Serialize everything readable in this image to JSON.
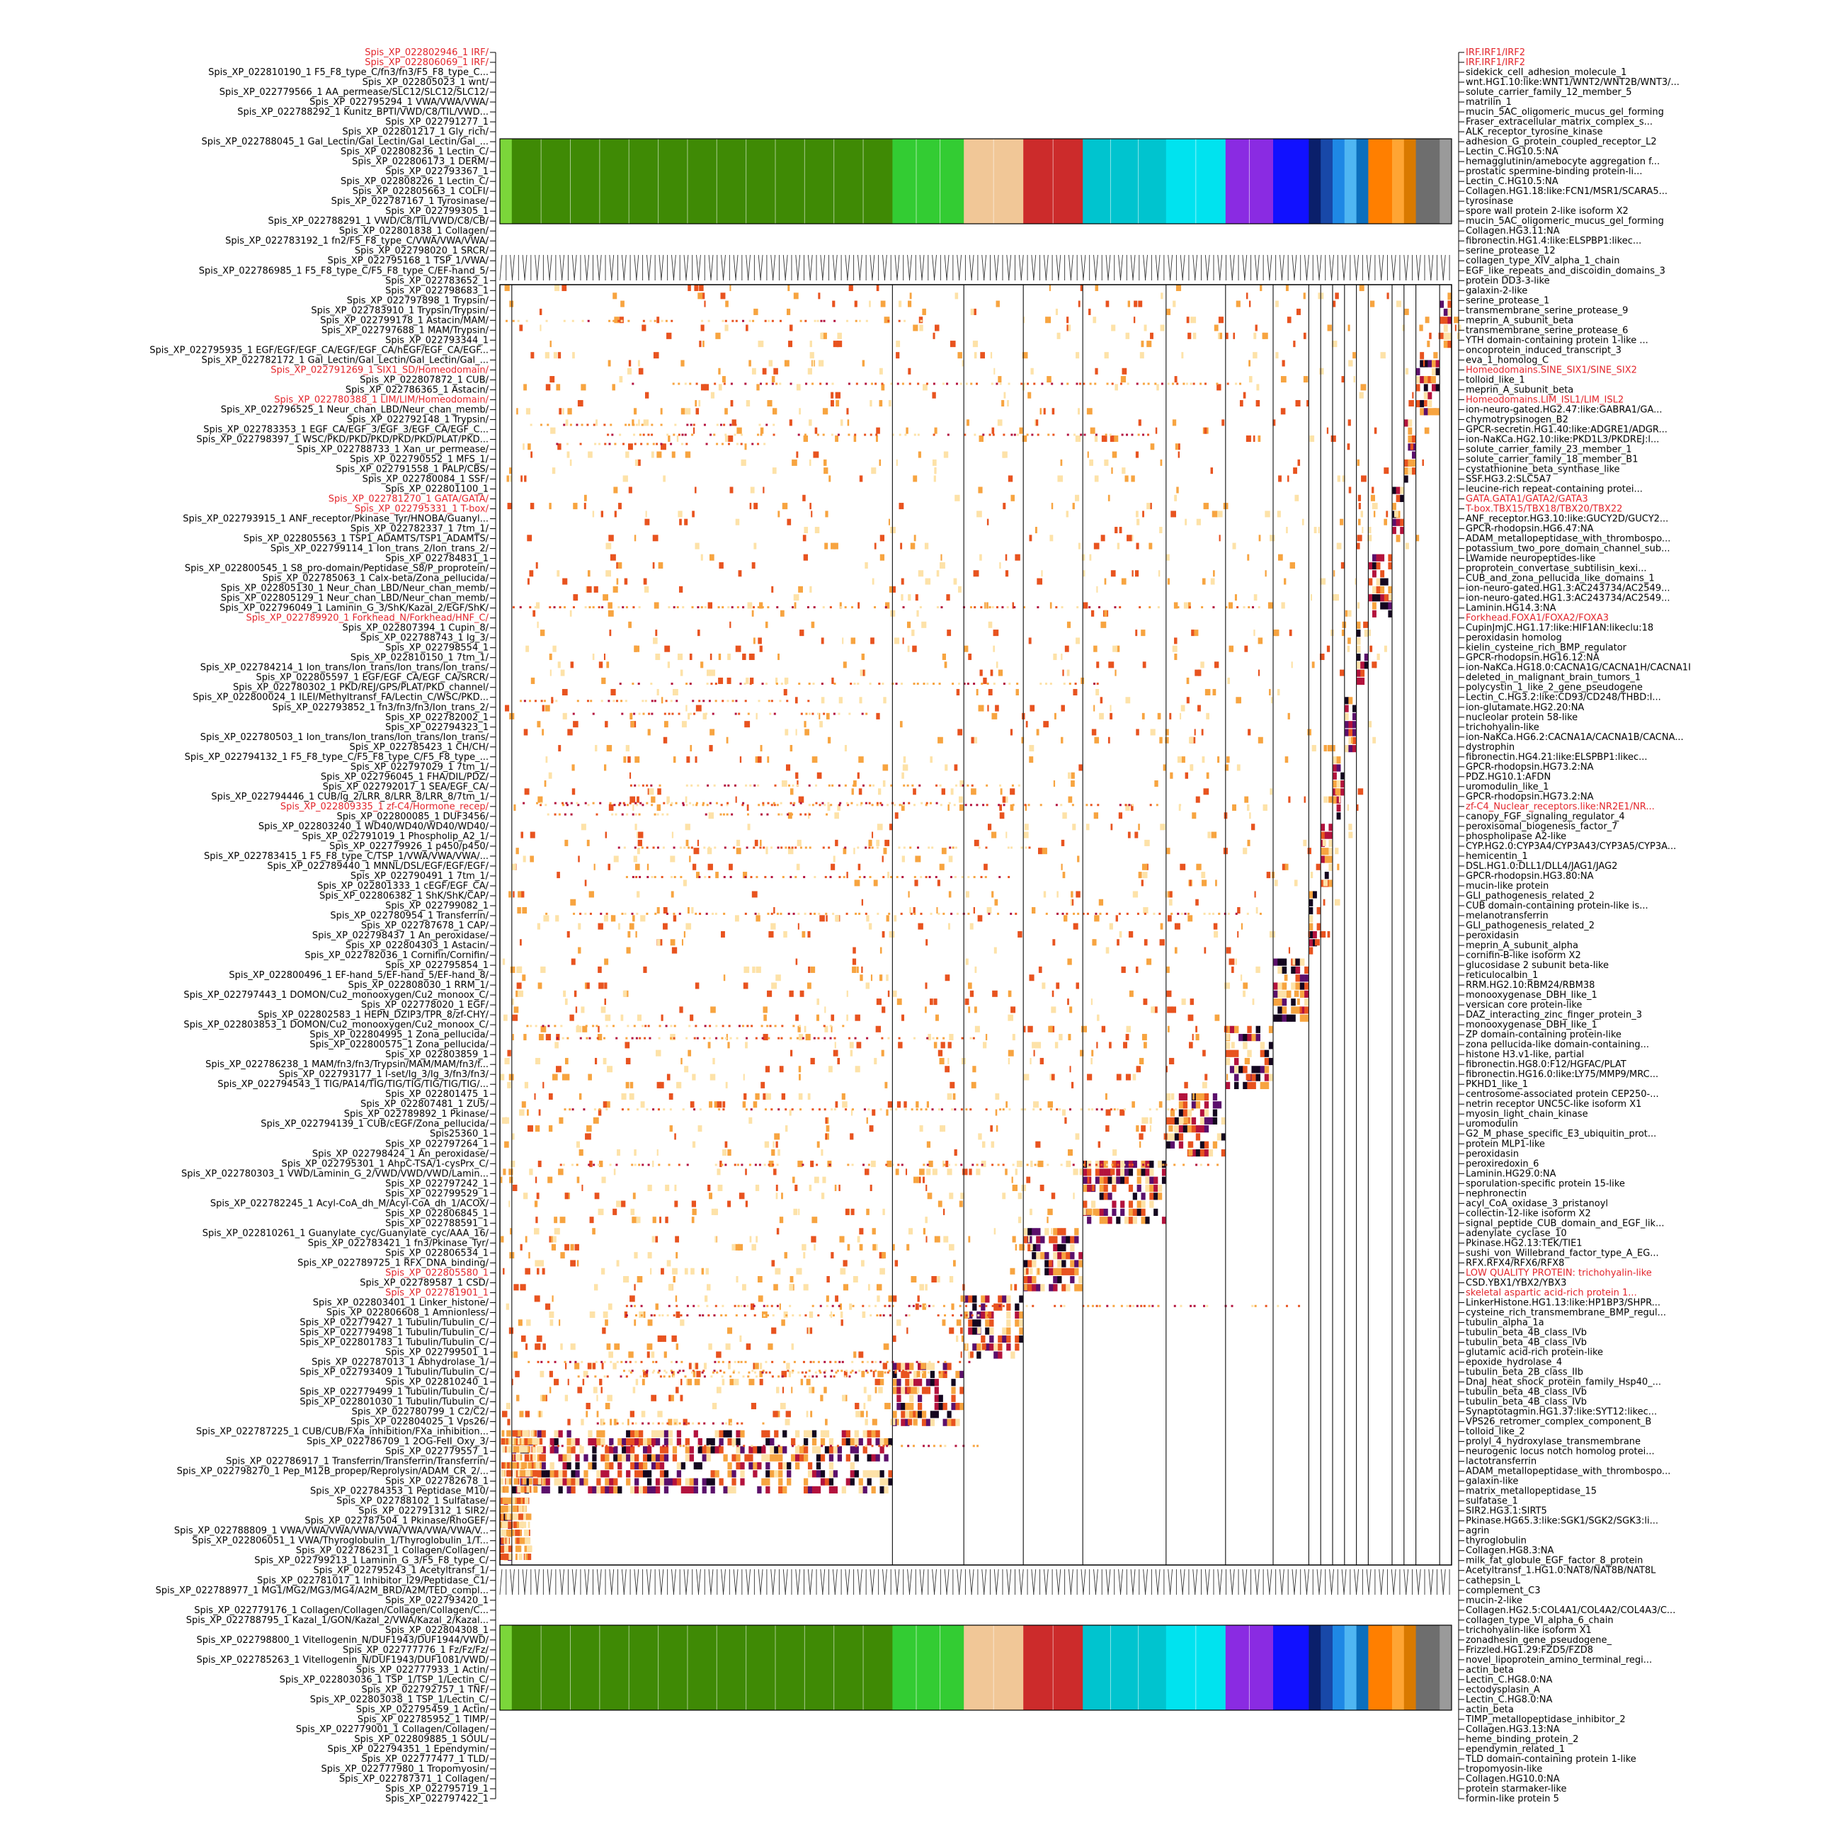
{
  "chart_data": {
    "type": "heatmap",
    "title": "",
    "xlabel": "",
    "ylabel": "",
    "colormap": [
      "#ffffff",
      "#fde2a8",
      "#f7a440",
      "#e8531f",
      "#b3123d",
      "#5b0f6b",
      "#14061f"
    ],
    "cluster_band_colors": [
      {
        "color": "#7bd63a",
        "weight": 1
      },
      {
        "color": "#3f8a05",
        "weight": 32
      },
      {
        "color": "#33cc33",
        "weight": 6
      },
      {
        "color": "#f1c797",
        "weight": 5
      },
      {
        "color": "#cc2b2b",
        "weight": 5
      },
      {
        "color": "#00c4cf",
        "weight": 7
      },
      {
        "color": "#00e3ef",
        "weight": 5
      },
      {
        "color": "#8a2be2",
        "weight": 4
      },
      {
        "color": "#1111ff",
        "weight": 3
      },
      {
        "color": "#0a1f6b",
        "weight": 1
      },
      {
        "color": "#1848a8",
        "weight": 1
      },
      {
        "color": "#1e88e5",
        "weight": 1
      },
      {
        "color": "#4fb6f2",
        "weight": 1
      },
      {
        "color": "#0c6fbd",
        "weight": 1
      },
      {
        "color": "#ff7f00",
        "weight": 2
      },
      {
        "color": "#ffa533",
        "weight": 1
      },
      {
        "color": "#d97a00",
        "weight": 1
      },
      {
        "color": "#6e6e6e",
        "weight": 2
      },
      {
        "color": "#9a9a9a",
        "weight": 1
      }
    ],
    "left_labels": [
      "Spis_XP_022802946_1 IRF/",
      "Spis_XP_022806069_1 IRF/",
      "Spis_XP_022810190_1 F5_F8_type_C/fn3/fn3/F5_F8_type_C...",
      "Spis_XP_022805023_1 wnt/",
      "Spis_XP_022779566_1 AA_permease/SLC12/SLC12/SLC12/",
      "Spis_XP_022795294_1 VWA/VWA/VWA/",
      "Spis_XP_022788292_1 Kunitz_BPTI/VWD/C8/TIL/VWD...",
      "Spis_XP_022791277_1",
      "Spis_XP_022801217_1 Gly_rich/",
      "Spis_XP_022788045_1 Gal_Lectin/Gal_Lectin/Gal_Lectin/Gal_...",
      "Spis_XP_022808236_1 Lectin_C/",
      "Spis_XP_022806173_1 DERM/",
      "Spis_XP_022793367_1",
      "Spis_XP_022808226_1 Lectin_C/",
      "Spis_XP_022805663_1 COLFI/",
      "Spis_XP_022787167_1 Tyrosinase/",
      "Spis_XP_022799305_1",
      "Spis_XP_022788291_1 VWD/C8/TIL/VWD/C8/CB/",
      "Spis_XP_022801838_1 Collagen/",
      "Spis_XP_022783192_1 fn2/F5_F8_type_C/VWA/VWA/VWA/",
      "Spis_XP_022798020_1 SRCR/",
      "Spis_XP_022795168_1 TSP_1/VWA/",
      "Spis_XP_022786985_1 F5_F8_type_C/F5_F8_type_C/EF-hand_5/",
      "Spis_XP_022783652_1",
      "Spis_XP_022798683_1",
      "Spis_XP_022797898_1 Trypsin/",
      "Spis_XP_022783910_1 Trypsin/Trypsin/",
      "Spis_XP_022799178_1 Astacin/MAM/",
      "Spis_XP_022797688_1 MAM/Trypsin/",
      "Spis_XP_022793344_1",
      "Spis_XP_022795935_1 EGF/EGF/EGF_CA/EGF/EGF_CA/hEGF/EGF_CA/EGF...",
      "Spis_XP_022782172_1 Gal_Lectin/Gal_Lectin/Gal_Lectin/Gal_...",
      "Spis_XP_022791269_1 SIX1_SD/Homeodomain/",
      "Spis_XP_022807872_1 CUB/",
      "Spis_XP_022786365_1 Astacin/",
      "Spis_XP_022780388_1 LIM/LIM/Homeodomain/",
      "Spis_XP_022796525_1 Neur_chan_LBD/Neur_chan_memb/",
      "Spis_XP_022792148_1 Trypsin/",
      "Spis_XP_022783353_1 EGF_CA/EGF_3/EGF_3/EGF_CA/EGF_C...",
      "Spis_XP_022798397_1 WSC/PKD/PKD/PKD/PKD/PKD/PLAT/PKD...",
      "Spis_XP_022788733_1 Xan_ur_permease/",
      "Spis_XP_022790552_1 MFS_1/",
      "Spis_XP_022791558_1 PALP/CBS/",
      "Spis_XP_022780084_1 SSF/",
      "Spis_XP_022801100_1",
      "Spis_XP_022781270_1 GATA/GATA/",
      "Spis_XP_022795331_1 T-box/",
      "Spis_XP_022793915_1 ANF_receptor/Pkinase_Tyr/HNOBA/Guanyl...",
      "Spis_XP_022782337_1 7tm_1/",
      "Spis_XP_022805563_1 TSP1_ADAMTS/TSP1_ADAMTS/",
      "Spis_XP_022799114_1 Ion_trans_2/Ion_trans_2/",
      "Spis_XP_022784831_1",
      "Spis_XP_022800545_1 S8_pro-domain/Peptidase_S8/P_proprotein/",
      "Spis_XP_022785063_1 Calx-beta/Zona_pellucida/",
      "Spis_XP_022805130_1 Neur_chan_LBD/Neur_chan_memb/",
      "Spis_XP_022805129_1 Neur_chan_LBD/Neur_chan_memb/",
      "Spis_XP_022796049_1 Laminin_G_3/ShK/Kazal_2/EGF/ShK/",
      "Spis_XP_022789920_1 Forkhead_N/Forkhead/HNF_C/",
      "Spis_XP_022807394_1 Cupin_8/",
      "Spis_XP_022788743_1 Ig_3/",
      "Spis_XP_022798554_1",
      "Spis_XP_022810150_1 7tm_1/",
      "Spis_XP_022784214_1 Ion_trans/Ion_trans/Ion_trans/Ion_trans/",
      "Spis_XP_022805597_1 EGF/EGF_CA/EGF_CA/SRCR/",
      "Spis_XP_022780302_1 PKD/REJ/GPS/PLAT/PKD_channel/",
      "Spis_XP_022800024_1 ILEI/Methyltransf_FA/Lectin_C/WSC/PKD...",
      "Spis_XP_022793852_1 fn3/fn3/fn3/Ion_trans_2/",
      "Spis_XP_022782002_1",
      "Spis_XP_022794323_1",
      "Spis_XP_022780503_1 Ion_trans/Ion_trans/Ion_trans/Ion_trans/",
      "Spis_XP_022785423_1 CH/CH/",
      "Spis_XP_022794132_1 F5_F8_type_C/F5_F8_type_C/F5_F8_type_...",
      "Spis_XP_022797029_1 7tm_1/",
      "Spis_XP_022796045_1 FHA/DIL/PDZ/",
      "Spis_XP_022792017_1 SEA/EGF_CA/",
      "Spis_XP_022794446_1 CUB/Ig_2/LRR_8/LRR_8/LRR_8/7tm_1/",
      "Spis_XP_022809335_1 zf-C4/Hormone_recep/",
      "Spis_XP_022800085_1 DUF3456/",
      "Spis_XP_022803240_1 WD40/WD40/WD40/WD40/",
      "Spis_XP_022791019_1 Phospholip_A2_1/",
      "Spis_XP_022779926_1 p450/p450/",
      "Spis_XP_022783415_1 F5_F8_type_C/TSP_1/VWA/VWA/VWA/...",
      "Spis_XP_022789440_1 MNNL/DSL/EGF/EGF/EGF/",
      "Spis_XP_022790491_1 7tm_1/",
      "Spis_XP_022801333_1 cEGF/EGF_CA/",
      "Spis_XP_022806382_1 ShK/ShK/CAP/",
      "Spis_XP_022799082_1",
      "Spis_XP_022780954_1 Transferrin/",
      "Spis_XP_022787678_1 CAP/",
      "Spis_XP_022798437_1 An_peroxidase/",
      "Spis_XP_022804303_1 Astacin/",
      "Spis_XP_022782036_1 Cornifin/Cornifin/",
      "Spis_XP_022795854_1",
      "Spis_XP_022800496_1 EF-hand_5/EF-hand_5/EF-hand_8/",
      "Spis_XP_022808030_1 RRM_1/",
      "Spis_XP_022797443_1 DOMON/Cu2_monooxygen/Cu2_monoox_C/",
      "Spis_XP_022778020_1 EGF/",
      "Spis_XP_022802583_1 HEPN_DZIP3/TPR_8/zf-CHY/",
      "Spis_XP_022803853_1 DOMON/Cu2_monooxygen/Cu2_monoox_C/",
      "Spis_XP_022804995_1 Zona_pellucida/",
      "Spis_XP_022800575_1 Zona_pellucida/",
      "Spis_XP_022803859_1",
      "Spis_XP_022786238_1 MAM/fn3/fn3/Trypsin/MAM/MAM/fn3/f...",
      "Spis_XP_022793177_1 I-set/Ig_3/Ig_3/fn3/fn3/",
      "Spis_XP_022794543_1 TIG/PA14/TIG/TIG/TIG/TIG/TIG/TIG/...",
      "Spis_XP_022801475_1",
      "Spis_XP_022807481_1 ZU5/",
      "Spis_XP_022789892_1 Pkinase/",
      "Spis_XP_022794139_1 CUB/cEGF/Zona_pellucida/",
      "Spis25360_1",
      "Spis_XP_022797264_1",
      "Spis_XP_022798424_1 An_peroxidase/",
      "Spis_XP_022795301_1 AhpC-TSA/1-cysPrx_C/",
      "Spis_XP_022780303_1 VWD/Laminin_G_2/VWD/VWD/VWD/Lamin...",
      "Spis_XP_022797242_1",
      "Spis_XP_022799529_1",
      "Spis_XP_022782245_1 Acyl-CoA_dh_M/Acyl-CoA_dh_1/ACOX/",
      "Spis_XP_022806845_1",
      "Spis_XP_022788591_1",
      "Spis_XP_022810261_1 Guanylate_cyc/Guanylate_cyc/AAA_16/",
      "Spis_XP_022783421_1 fn3/Pkinase_Tyr/",
      "Spis_XP_022806534_1",
      "Spis_XP_022789725_1 RFX_DNA_binding/",
      "Spis_XP_022805580_1",
      "Spis_XP_022789587_1 CSD/",
      "Spis_XP_022781901_1",
      "Spis_XP_022803401_1 Linker_histone/",
      "Spis_XP_022806608_1 Amnionless/",
      "Spis_XP_022779427_1 Tubulin/Tubulin_C/",
      "Spis_XP_022779498_1 Tubulin/Tubulin_C/",
      "Spis_XP_022801783_1 Tubulin/Tubulin_C/",
      "Spis_XP_022799501_1",
      "Spis_XP_022787013_1 Abhydrolase_1/",
      "Spis_XP_022793409_1 Tubulin/Tubulin_C/",
      "Spis_XP_022810240_1",
      "Spis_XP_022779499_1 Tubulin/Tubulin_C/",
      "Spis_XP_022801030_1 Tubulin/Tubulin_C/",
      "Spis_XP_022780799_1 C2/C2/",
      "Spis_XP_022804025_1 Vps26/",
      "Spis_XP_022787225_1 CUB/CUB/FXa_inhibition/FXa_inhibition...",
      "Spis_XP_022786709_1 2OG-FeII_Oxy_3/",
      "Spis_XP_022779557_1",
      "Spis_XP_022786917_1 Transferrin/Transferrin/Transferrin/",
      "Spis_XP_022798270_1 Pep_M12B_propep/Reprolysin/ADAM_CR_2/...",
      "Spis_XP_022782678_1",
      "Spis_XP_022784353_1 Peptidase_M10/",
      "Spis_XP_022788102_1 Sulfatase/",
      "Spis_XP_022791312_1 SIR2/",
      "Spis_XP_022787504_1 Pkinase/RhoGEF/",
      "Spis_XP_022788809_1 VWA/VWA/VWA/VWA/VWA/VWA/VWA/VWA/V...",
      "Spis_XP_022806051_1 VWA/Thyroglobulin_1/Thyroglobulin_1/T...",
      "Spis_XP_022786231_1 Collagen/Collagen/",
      "Spis_XP_022799213_1 Laminin_G_3/F5_F8_type_C/",
      "Spis_XP_022795243_1 Acetyltransf_1/",
      "Spis_XP_022781017_1 Inhibitor_I29/Peptidase_C1/",
      "Spis_XP_022788977_1 MG1/MG2/MG3/MG4/A2M_BRD/A2M/TED_compl...",
      "Spis_XP_022793420_1",
      "Spis_XP_022779176_1 Collagen/Collagen/Collagen/Collagen/C...",
      "Spis_XP_022788795_1 Kazal_1/GON/Kazal_2/VWA/Kazal_2/Kazal...",
      "Spis_XP_022804308_1",
      "Spis_XP_022798800_1 Vitellogenin_N/DUF1943/DUF1944/VWD/",
      "Spis_XP_022777776_1 Fz/Fz/Fz/",
      "Spis_XP_022785263_1 Vitellogenin_N/DUF1943/DUF1081/VWD/",
      "Spis_XP_022777933_1 Actin/",
      "Spis_XP_022803036_1 TSP_1/TSP_1/Lectin_C/",
      "Spis_XP_022792757_1 TNF/",
      "Spis_XP_022803038_1 TSP_1/Lectin_C/",
      "Spis_XP_022795459_1 Actin/",
      "Spis_XP_022785952_1 TIMP/",
      "Spis_XP_022779001_1 Collagen/Collagen/",
      "Spis_XP_022809885_1 SOUL/",
      "Spis_XP_022794351_1 Ependymin/",
      "Spis_XP_022777477_1 TLD/",
      "Spis_XP_022777980_1 Tropomyosin/",
      "Spis_XP_022787371_1 Collagen/",
      "Spis_XP_022795719_1",
      "Spis_XP_022797422_1"
    ],
    "right_labels": [
      "IRF.IRF1/IRF2",
      "IRF.IRF1/IRF2",
      "sidekick_cell_adhesion_molecule_1",
      "wnt.HG1.10:like:WNT1/WNT2/WNT2B/WNT3/...",
      "solute_carrier_family_12_member_5",
      "matrilin_1",
      "mucin_5AC_oligomeric_mucus_gel_forming",
      "Fraser_extracellular_matrix_complex_s...",
      "ALK_receptor_tyrosine_kinase",
      "adhesion_G_protein_coupled_receptor_L2",
      "Lectin_C.HG10.5:NA",
      "hemagglutinin/amebocyte aggregation f...",
      "prostatic spermine-binding protein-li...",
      "Lectin_C.HG10.5:NA",
      "Collagen.HG1.18:like:FCN1/MSR1/SCARA5...",
      "tyrosinase",
      "spore wall protein 2-like isoform X2",
      "mucin_5AC_oligomeric_mucus_gel_forming",
      "Collagen.HG3.11:NA",
      "fibronectin.HG1.4:like:ELSPBP1:likec...",
      "serine_protease_12",
      "collagen_type_XIV_alpha_1_chain",
      "EGF_like_repeats_and_discoidin_domains_3",
      "protein DD3-3-like",
      "galaxin-2-like",
      "serine_protease_1",
      "transmembrane_serine_protease_9",
      "meprin_A_subunit_beta",
      "transmembrane_serine_protease_6",
      "YTH domain-containing protein 1-like ...",
      "oncoprotein_induced_transcript_3",
      "eva_1_homolog_C",
      "Homeodomains.SINE_SIX1/SINE_SIX2",
      "tolloid_like_1",
      "meprin_A_subunit_beta",
      "Homeodomains.LIM_ISL1/LIM_ISL2",
      "ion-neuro-gated.HG2.47:like:GABRA1/GA...",
      "chymotrypsinogen_B2",
      "GPCR-secretin.HG1.40:like:ADGRE1/ADGR...",
      "ion-NaKCa.HG2.10:like:PKD1L3/PKDREJ:l...",
      "solute_carrier_family_23_member_1",
      "solute_carrier_family_18_member_B1",
      "cystathionine_beta_synthase_like",
      "SSF.HG3.2:SLC5A7",
      "leucine-rich repeat-containing protei...",
      "GATA.GATA1/GATA2/GATA3",
      "T-box.TBX15/TBX18/TBX20/TBX22",
      "ANF_receptor.HG3.10:like:GUCY2D/GUCY2...",
      "GPCR-rhodopsin.HG6.47:NA",
      "ADAM_metallopeptidase_with_thrombospo...",
      "potassium_two_pore_domain_channel_sub...",
      "LWamide neuropeptides-like",
      "proprotein_convertase_subtilisin_kexi...",
      "CUB_and_zona_pellucida_like_domains_1",
      "ion-neuro-gated.HG1.3:AC243734/AC2549...",
      "ion-neuro-gated.HG1.3:AC243734/AC2549...",
      "Laminin.HG14.3:NA",
      "Forkhead.FOXA1/FOXA2/FOXA3",
      "CupinJmjC.HG1.17:like:HIF1AN:likeclu:18",
      "peroxidasin homolog",
      "kielin_cysteine_rich_BMP_regulator",
      "GPCR-rhodopsin.HG16.12:NA",
      "ion-NaKCa.HG18.0:CACNA1G/CACNA1H/CACNA1I",
      "deleted_in_malignant_brain_tumors_1",
      "polycystin_1_like_2_gene_pseudogene",
      "Lectin_C.HG3.2:like:CD93/CD248/THBD:l...",
      "ion-glutamate.HG2.20:NA",
      "nucleolar protein 58-like",
      "trichohyalin-like",
      "ion-NaKCa.HG6.2:CACNA1A/CACNA1B/CACNA...",
      "dystrophin",
      "fibronectin.HG4.21:like:ELSPBP1:likec...",
      "GPCR-rhodopsin.HG73.2:NA",
      "PDZ.HG10.1:AFDN",
      "uromodulin_like_1",
      "GPCR-rhodopsin.HG73.2:NA",
      "zf-C4_Nuclear_receptors.like:NR2E1/NR...",
      "canopy_FGF_signaling_regulator_4",
      "peroxisomal_biogenesis_factor_7",
      "phospholipase A2-like",
      "CYP.HG2.0:CYP3A4/CYP3A43/CYP3A5/CYP3A...",
      "hemicentin_1",
      "DSL.HG1.0:DLL1/DLL4/JAG1/JAG2",
      "GPCR-rhodopsin.HG3.80:NA",
      "mucin-like protein",
      "GLI_pathogenesis_related_2",
      "CUB domain-containing protein-like is...",
      "melanotransferrin",
      "GLI_pathogenesis_related_2",
      "peroxidasin",
      "meprin_A_subunit_alpha",
      "cornifin-B-like isoform X2",
      "glucosidase 2 subunit beta-like",
      "reticulocalbin_1",
      "RRM.HG2.10:RBM24/RBM38",
      "monooxygenase_DBH_like_1",
      "versican core protein-like",
      "DAZ_interacting_zinc_finger_protein_3",
      "monooxygenase_DBH_like_1",
      "ZP domain-containing protein-like",
      "zona pellucida-like domain-containing...",
      "histone H3.v1-like, partial",
      "fibronectin.HG8.0:F12/HGFAC/PLAT",
      "fibronectin.HG16.0:like:LY75/MMP9/MRC...",
      "PKHD1_like_1",
      "centrosome-associated protein CEP250-...",
      "netrin receptor UNC5C-like isoform X1",
      "myosin_light_chain_kinase",
      "uromodulin",
      "G2_M_phase_specific_E3_ubiquitin_prot...",
      "protein MLP1-like",
      "peroxidasin",
      "peroxiredoxin_6",
      "Laminin.HG29.0:NA",
      "sporulation-specific protein 15-like",
      "nephronectin",
      "acyl_CoA_oxidase_3_pristanoyl",
      "collectin-12-like isoform X2",
      "signal_peptide_CUB_domain_and_EGF_lik...",
      "adenylate_cyclase_10",
      "Pkinase.HG2.13:TEK/TIE1",
      "sushi_von_Willebrand_factor_type_A_EG...",
      "RFX.RFX4/RFX6/RFX8",
      "LOW QUALITY PROTEIN: trichohyalin-like",
      "CSD.YBX1/YBX2/YBX3",
      "skeletal aspartic acid-rich protein 1...",
      "LinkerHistone.HG1.13:like:HP1BP3/SHPR...",
      "cysteine_rich_transmembrane_BMP_regul...",
      "tubulin_alpha_1a",
      "tubulin_beta_4B_class_IVb",
      "tubulin_beta_4B_class_IVb",
      "glutamic acid-rich protein-like",
      "epoxide_hydrolase_4",
      "tubulin_beta_2B_class_IIb",
      "DnaJ_heat_shock_protein_family_Hsp40_...",
      "tubulin_beta_4B_class_IVb",
      "tubulin_beta_4B_class_IVb",
      "Synaptotagmin.HG1.37:like:SYT12:likec...",
      "VPS26_retromer_complex_component_B",
      "tolloid_like_2",
      "prolyl_4_hydroxylase_transmembrane",
      "neurogenic locus notch homolog protei...",
      "lactotransferrin",
      "ADAM_metallopeptidase_with_thrombospo...",
      "galaxin-like",
      "matrix_metallopeptidase_15",
      "sulfatase_1",
      "SIR2.HG3.1:SIRT5",
      "Pkinase.HG65.3:like:SGK1/SGK2/SGK3:li...",
      "agrin",
      "thyroglobulin",
      "Collagen.HG8.3:NA",
      "milk_fat_globule_EGF_factor_8_protein",
      "Acetyltransf_1.HG1.0:NAT8/NAT8B/NAT8L",
      "cathepsin_L",
      "complement_C3",
      "mucin-2-like",
      "Collagen.HG2.5:COL4A1/COL4A2/COL4A3/C...",
      "collagen_type_VI_alpha_6_chain",
      "trichohyalin-like isoform X1",
      "zonadhesin_gene_pseudogene_",
      "Frizzled.HG1.29:FZD5/FZD8",
      "novel_lipoprotein_amino_terminal_regi...",
      "actin_beta",
      "Lectin_C.HG8.0:NA",
      "ectodysplasin_A",
      "Lectin_C.HG8.0:NA",
      "actin_beta",
      "TIMP_metallopeptidase_inhibitor_2",
      "Collagen.HG3.13:NA",
      "heme_binding_protein_2",
      "ependymin_related_1",
      "TLD domain-containing protein 1-like",
      "tropomyosin-like",
      "Collagen.HG10.0:NA",
      "protein starmaker-like",
      "formin-like protein 5"
    ],
    "highlighted_rows": [
      0,
      1,
      32,
      35,
      45,
      46,
      57,
      76,
      123,
      125
    ],
    "highlight_color": "#e3262c"
  }
}
